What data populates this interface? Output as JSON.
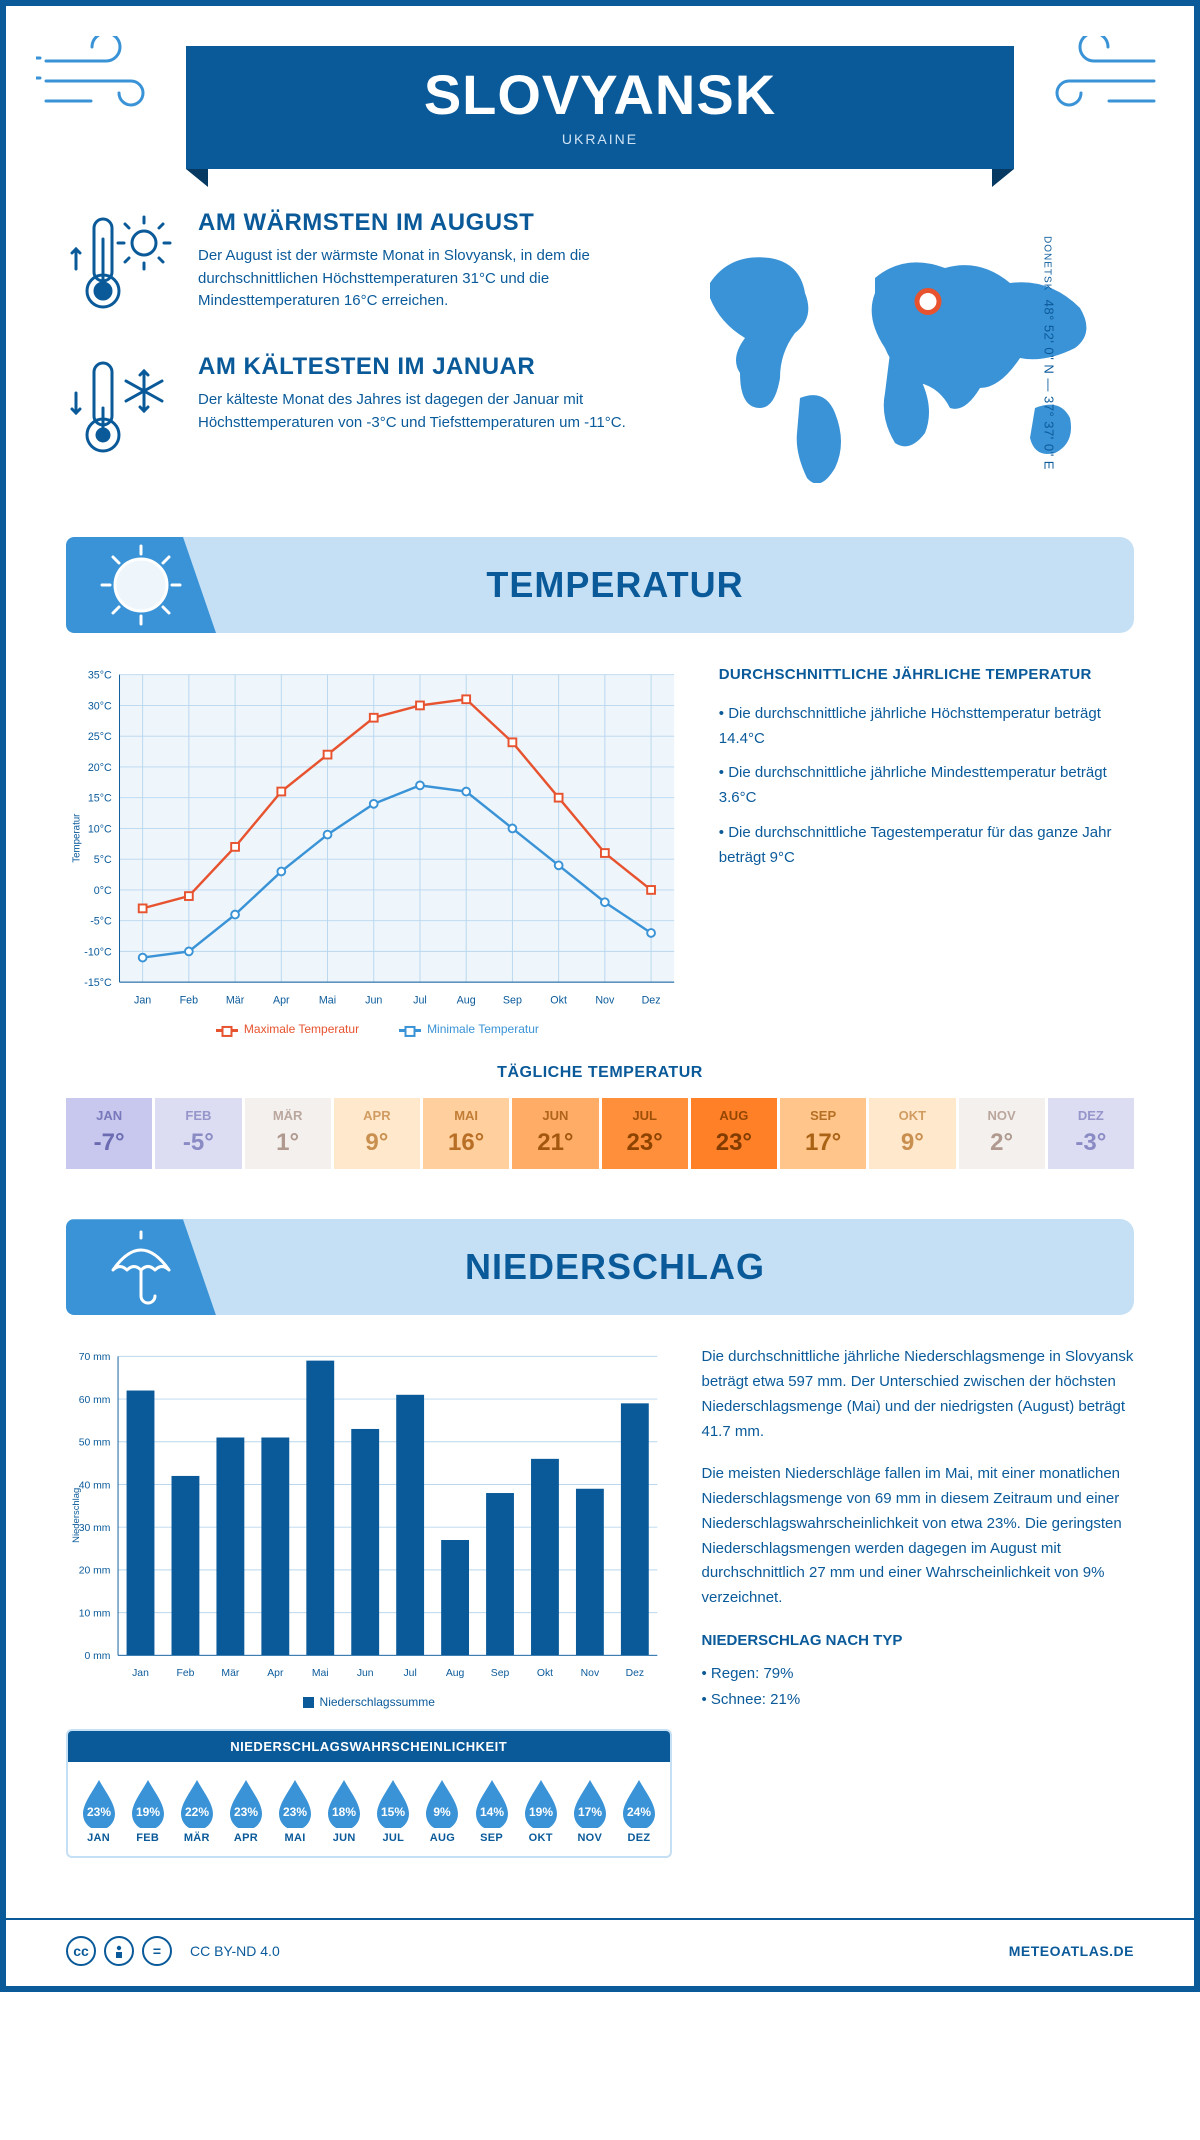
{
  "header": {
    "city": "SLOVYANSK",
    "country": "UKRAINE",
    "accent": "#0a5a9a"
  },
  "coords": {
    "region": "DONETSK",
    "lat": "48° 52' 0\" N",
    "lon": "37° 37' 0\" E"
  },
  "facts": {
    "warm": {
      "title": "AM WÄRMSTEN IM AUGUST",
      "text": "Der August ist der wärmste Monat in Slovyansk, in dem die durchschnittlichen Höchsttemperaturen 31°C und die Mindesttemperaturen 16°C erreichen."
    },
    "cold": {
      "title": "AM KÄLTESTEN IM JANUAR",
      "text": "Der kälteste Monat des Jahres ist dagegen der Januar mit Höchsttemperaturen von -3°C und Tiefsttemperaturen um -11°C."
    }
  },
  "sections": {
    "temperature": "TEMPERATUR",
    "precip": "NIEDERSCHLAG"
  },
  "tempChart": {
    "months": [
      "Jan",
      "Feb",
      "Mär",
      "Apr",
      "Mai",
      "Jun",
      "Jul",
      "Aug",
      "Sep",
      "Okt",
      "Nov",
      "Dez"
    ],
    "max": [
      -3,
      -1,
      7,
      16,
      22,
      28,
      30,
      31,
      24,
      15,
      6,
      0
    ],
    "min": [
      -11,
      -10,
      -4,
      3,
      9,
      14,
      17,
      16,
      10,
      4,
      -2,
      -7
    ],
    "max_color": "#e7532f",
    "min_color": "#3a93d6",
    "bg": "#eef6fc",
    "grid_color": "#b9d7ee",
    "ylim": [
      -15,
      35
    ],
    "ytick_step": 5,
    "ylabel": "Temperatur",
    "legend_max": "Maximale Temperatur",
    "legend_min": "Minimale Temperatur",
    "marker_size": 4,
    "line_width": 2.5
  },
  "tempInfo": {
    "heading": "DURCHSCHNITTLICHE JÄHRLICHE TEMPERATUR",
    "b1": "• Die durchschnittliche jährliche Höchsttemperatur beträgt 14.4°C",
    "b2": "• Die durchschnittliche jährliche Mindesttemperatur beträgt 3.6°C",
    "b3": "• Die durchschnittliche Tagestemperatur für das ganze Jahr beträgt 9°C"
  },
  "dailyTemp": {
    "title": "TÄGLICHE TEMPERATUR",
    "months": [
      "JAN",
      "FEB",
      "MÄR",
      "APR",
      "MAI",
      "JUN",
      "JUL",
      "AUG",
      "SEP",
      "OKT",
      "NOV",
      "DEZ"
    ],
    "values": [
      "-7°",
      "-5°",
      "1°",
      "9°",
      "16°",
      "21°",
      "23°",
      "23°",
      "17°",
      "9°",
      "2°",
      "-3°"
    ],
    "bg_colors": [
      "#c8c8ee",
      "#dcdcf2",
      "#f4f0ee",
      "#ffe8cc",
      "#ffcf9d",
      "#ffad66",
      "#ff8f3a",
      "#ff8027",
      "#ffc58a",
      "#ffe8cc",
      "#f4f0ee",
      "#dcdcf2"
    ],
    "text_colors": [
      "#6b6bb2",
      "#8a8ac4",
      "#b09a8f",
      "#c98f4f",
      "#b86f25",
      "#a35710",
      "#8e4400",
      "#823c00",
      "#aa6214",
      "#c98f4f",
      "#b09a8f",
      "#8a8ac4"
    ]
  },
  "precipChart": {
    "months": [
      "Jan",
      "Feb",
      "Mär",
      "Apr",
      "Mai",
      "Jun",
      "Jul",
      "Aug",
      "Sep",
      "Okt",
      "Nov",
      "Dez"
    ],
    "values": [
      62,
      42,
      51,
      51,
      69,
      53,
      61,
      27,
      38,
      46,
      39,
      59
    ],
    "bar_color": "#0a5a9a",
    "bg": "#ffffff",
    "grid_color": "#b9d7ee",
    "ylim": [
      0,
      70
    ],
    "ytick_step": 10,
    "ylabel": "Niederschlag",
    "legend": "Niederschlagssumme",
    "bar_width": 0.62
  },
  "precipInfo": {
    "p1": "Die durchschnittliche jährliche Niederschlagsmenge in Slovyansk beträgt etwa 597 mm. Der Unterschied zwischen der höchsten Niederschlagsmenge (Mai) und der niedrigsten (August) beträgt 41.7 mm.",
    "p2": "Die meisten Niederschläge fallen im Mai, mit einer monatlichen Niederschlagsmenge von 69 mm in diesem Zeitraum und einer Niederschlagswahrscheinlichkeit von etwa 23%. Die geringsten Niederschlagsmengen werden dagegen im August mit durchschnittlich 27 mm und einer Wahrscheinlichkeit von 9% verzeichnet.",
    "type_head": "NIEDERSCHLAG NACH TYP",
    "type_b1": "• Regen: 79%",
    "type_b2": "• Schnee: 21%"
  },
  "prob": {
    "title": "NIEDERSCHLAGSWAHRSCHEINLICHKEIT",
    "months": [
      "JAN",
      "FEB",
      "MÄR",
      "APR",
      "MAI",
      "JUN",
      "JUL",
      "AUG",
      "SEP",
      "OKT",
      "NOV",
      "DEZ"
    ],
    "values": [
      "23%",
      "19%",
      "22%",
      "23%",
      "23%",
      "18%",
      "15%",
      "9%",
      "14%",
      "19%",
      "17%",
      "24%"
    ],
    "drop_color": "#3a93d6"
  },
  "footer": {
    "license": "CC BY-ND 4.0",
    "brand": "METEOATLAS.DE"
  },
  "map": {
    "land_color": "#3a93d6",
    "pin_color": "#e7532f",
    "pin_left_pct": 56,
    "pin_top_pct": 33
  }
}
